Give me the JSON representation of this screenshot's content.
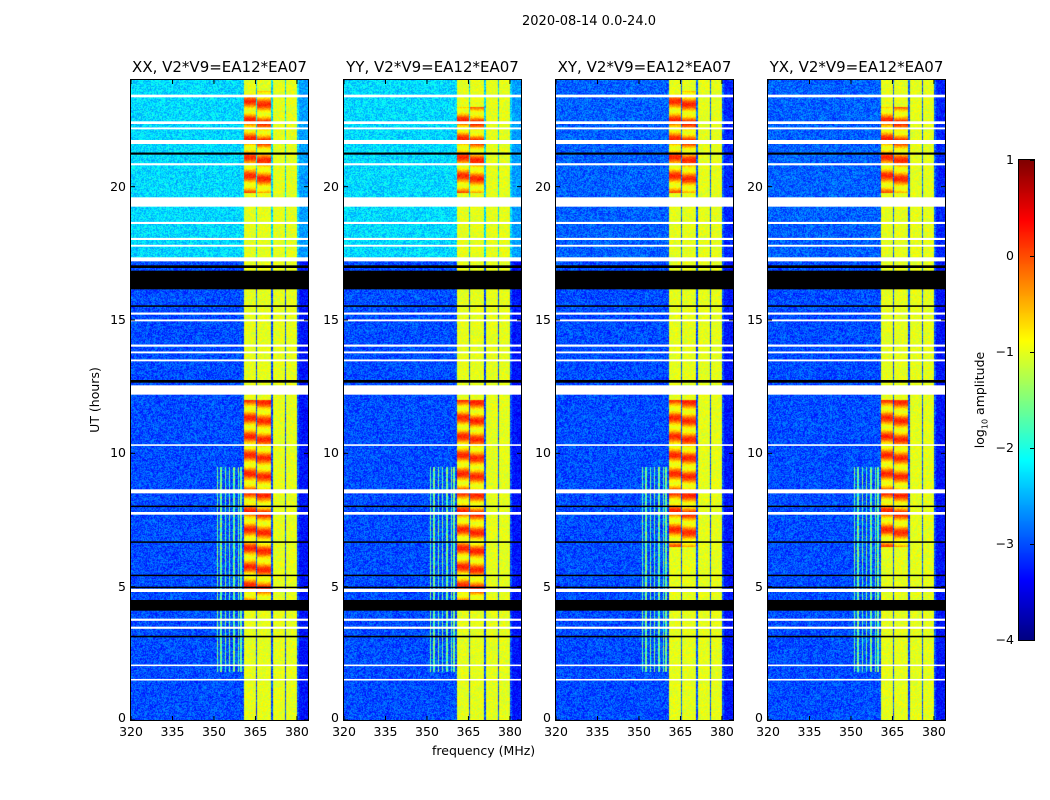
{
  "chart_data": {
    "type": "heatmap",
    "title": "2020-08-14 0.0-24.0",
    "xlabel": "frequency (MHz)",
    "ylabel": "UT (hours)",
    "xlim": [
      320,
      384
    ],
    "ylim": [
      0,
      24
    ],
    "xticks": [
      "320",
      "335",
      "350",
      "365",
      "380"
    ],
    "xtick_values": [
      320,
      335,
      350,
      365,
      380
    ],
    "yticks": [
      "0",
      "5",
      "10",
      "15",
      "20"
    ],
    "ytick_values": [
      0,
      5,
      10,
      15,
      20
    ],
    "panels": [
      {
        "title": "XX, V2*V9=EA12*EA07",
        "pol": "XX",
        "background_upper": -2.3,
        "background_lower": -3.0,
        "strong_windows": [
          [
            19.8,
            23.6
          ],
          [
            4.5,
            12.0
          ]
        ]
      },
      {
        "title": "YY, V2*V9=EA12*EA07",
        "pol": "YY",
        "background_upper": -2.3,
        "background_lower": -3.0,
        "strong_windows": [
          [
            19.8,
            23.0
          ],
          [
            4.5,
            12.0
          ]
        ]
      },
      {
        "title": "XY, V2*V9=EA12*EA07",
        "pol": "XY",
        "background_upper": -2.9,
        "background_lower": -3.0,
        "strong_windows": [
          [
            19.8,
            23.6
          ],
          [
            6.5,
            12.0
          ]
        ]
      },
      {
        "title": "YX, V2*V9=EA12*EA07",
        "pol": "YX",
        "background_upper": -2.9,
        "background_lower": -3.0,
        "strong_windows": [
          [
            19.8,
            23.0
          ],
          [
            6.5,
            12.0
          ]
        ]
      }
    ],
    "upper_background_start_hours": 17.3,
    "rfi_bands_mhz": [
      [
        360.5,
        365
      ],
      [
        365.5,
        370.5
      ],
      [
        371,
        375.5
      ],
      [
        376,
        380
      ]
    ],
    "rfi_level": -1.0,
    "strong_level": 0.0,
    "intermittent_channels_mhz": [
      351,
      352.3,
      354,
      355.5,
      357,
      358.6,
      359.6
    ],
    "intermittent_hours": [
      1.8,
      9.5
    ],
    "flagged_rows_white_hours": [
      [
        23.35,
        23.45
      ],
      [
        22.35,
        22.45
      ],
      [
        22.15,
        22.22
      ],
      [
        21.6,
        21.75
      ],
      [
        20.8,
        20.88
      ],
      [
        19.25,
        19.6
      ],
      [
        18.6,
        18.68
      ],
      [
        18.0,
        18.08
      ],
      [
        17.75,
        17.82
      ],
      [
        17.2,
        17.35
      ],
      [
        15.2,
        15.28
      ],
      [
        14.95,
        15.02
      ],
      [
        14.0,
        14.08
      ],
      [
        13.75,
        13.82
      ],
      [
        13.45,
        13.52
      ],
      [
        12.2,
        12.55
      ],
      [
        10.28,
        10.34
      ],
      [
        8.5,
        8.65
      ],
      [
        7.7,
        7.8
      ],
      [
        4.8,
        4.92
      ],
      [
        3.72,
        3.8
      ],
      [
        3.42,
        3.5
      ],
      [
        2.02,
        2.08
      ],
      [
        1.48,
        1.54
      ]
    ],
    "flagged_rows_black_hours": [
      [
        21.2,
        21.28
      ],
      [
        16.95,
        17.05
      ],
      [
        16.15,
        16.85
      ],
      [
        15.5,
        15.55
      ],
      [
        12.65,
        12.75
      ],
      [
        8.0,
        8.04
      ],
      [
        6.65,
        6.7
      ],
      [
        5.4,
        5.45
      ],
      [
        4.95,
        5.0
      ],
      [
        4.1,
        4.5
      ],
      [
        3.1,
        3.16
      ]
    ],
    "colorbar": {
      "label": "log₁₀ amplitude",
      "label_base": "log",
      "label_sub": "10",
      "label_rest": " amplitude",
      "range": [
        -4,
        1
      ],
      "ticks": [
        "1",
        "0",
        "−1",
        "−2",
        "−3",
        "−4"
      ],
      "tick_values": [
        1,
        0,
        -1,
        -2,
        -3,
        -4
      ],
      "colormap": "jet"
    }
  }
}
